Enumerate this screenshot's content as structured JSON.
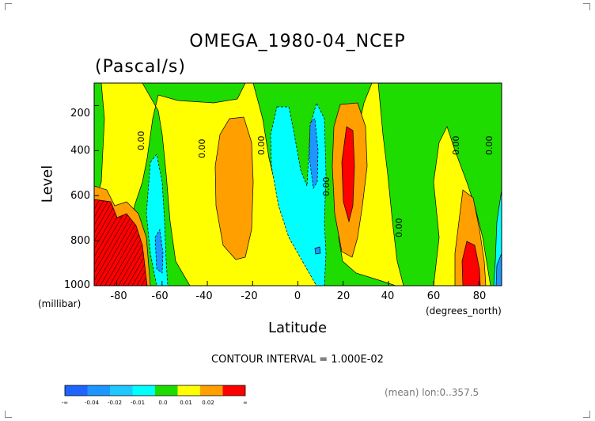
{
  "chart_data": {
    "type": "heatmap",
    "title": "OMEGA_1980-04_NCEP",
    "units": "(Pascal/s)",
    "xlabel": "Latitude",
    "ylabel": "Level",
    "x_unit_note": "(degrees_north)",
    "y_unit_note": "(millibar)",
    "xlim": [
      -90,
      90
    ],
    "ylim": [
      1000,
      100
    ],
    "x_ticks": [
      "-80",
      "-60",
      "-40",
      "-20",
      "0",
      "20",
      "40",
      "60",
      "80"
    ],
    "y_ticks": [
      "200",
      "400",
      "600",
      "800",
      "1000"
    ],
    "contour_interval_text": "CONTOUR INTERVAL = 1.000E-02",
    "contour_labels": [
      "0.00",
      "0.00",
      "0.00",
      "0.00",
      "0.00",
      "0.00",
      "0.00"
    ],
    "colorbar": {
      "labels": [
        "-∞",
        "-0.04",
        "-0.02",
        "-0.01",
        "0.0",
        "0.01",
        "0.02",
        "∞"
      ],
      "colors": [
        "#1e64ff",
        "#1e96ff",
        "#1ec8ff",
        "#00ffff",
        "#1edc00",
        "#ffff00",
        "#ffa000",
        "#ff0000"
      ]
    },
    "footer_note": "(mean) lon:0..357.5"
  }
}
